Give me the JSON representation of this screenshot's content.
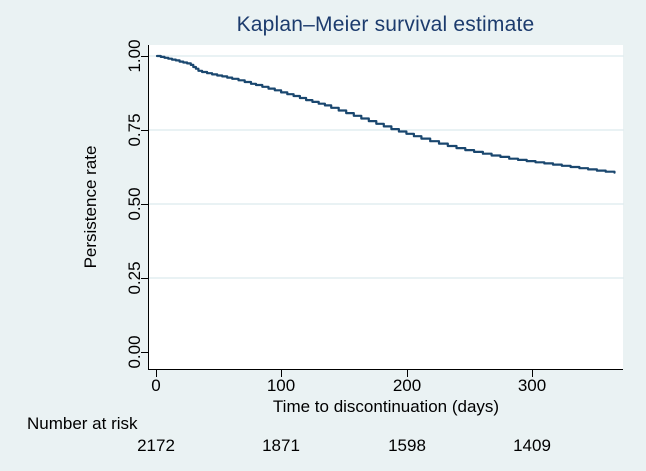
{
  "title": {
    "text": "Kaplan–Meier survival estimate"
  },
  "axes": {
    "y": {
      "title": "Persistence rate",
      "ticks": [
        "1.00",
        "0.75",
        "0.50",
        "0.25",
        "0.00"
      ]
    },
    "x": {
      "title": "Time to discontinuation (days)",
      "ticks": [
        "0",
        "100",
        "200",
        "300"
      ]
    }
  },
  "risk_table": {
    "label": "Number at risk"
  },
  "colors": {
    "background": "#EAF2F3",
    "plot_background": "#FFFFFF",
    "curve": "#1A476F",
    "title_text": "#1C3B6D",
    "grid": "#E2EDF0",
    "axis": "#000000"
  },
  "chart_data": {
    "type": "line",
    "subtype": "kaplan-meier-step",
    "title": "Kaplan–Meier survival estimate",
    "xlabel": "Time to discontinuation (days)",
    "ylabel": "Persistence rate",
    "xlim": [
      0,
      373
    ],
    "ylim": [
      0.0,
      1.0
    ],
    "x_tick_values": [
      0,
      100,
      200,
      300
    ],
    "y_tick_values": [
      1.0,
      0.75,
      0.5,
      0.25,
      0.0
    ],
    "grid_values": [
      1.0,
      0.75,
      0.5,
      0.25
    ],
    "grid": true,
    "legend": "none",
    "series": [
      {
        "name": "KM survival estimate",
        "x": [
          0,
          3,
          6,
          9,
          12,
          15,
          18,
          21,
          24,
          27,
          29,
          31,
          33,
          36,
          40,
          44,
          48,
          52,
          56,
          60,
          65,
          70,
          75,
          79,
          84,
          89,
          94,
          99,
          104,
          109,
          114,
          119,
          124,
          129,
          134,
          139,
          145,
          151,
          157,
          163,
          169,
          175,
          181,
          187,
          193,
          199,
          205,
          211,
          218,
          225,
          232,
          239,
          246,
          253,
          260,
          267,
          274,
          281,
          288,
          295,
          302,
          309,
          316,
          323,
          330,
          337,
          344,
          351,
          358,
          365
        ],
        "y": [
          1.0,
          0.997,
          0.994,
          0.991,
          0.988,
          0.985,
          0.981,
          0.978,
          0.975,
          0.97,
          0.963,
          0.957,
          0.95,
          0.946,
          0.942,
          0.938,
          0.934,
          0.931,
          0.927,
          0.923,
          0.918,
          0.912,
          0.906,
          0.902,
          0.896,
          0.89,
          0.884,
          0.877,
          0.871,
          0.865,
          0.858,
          0.851,
          0.845,
          0.839,
          0.833,
          0.825,
          0.816,
          0.807,
          0.798,
          0.789,
          0.78,
          0.771,
          0.762,
          0.753,
          0.745,
          0.737,
          0.729,
          0.721,
          0.712,
          0.704,
          0.696,
          0.689,
          0.682,
          0.676,
          0.67,
          0.664,
          0.659,
          0.653,
          0.649,
          0.645,
          0.641,
          0.637,
          0.633,
          0.629,
          0.625,
          0.621,
          0.617,
          0.613,
          0.609,
          0.606
        ]
      }
    ],
    "number_at_risk": {
      "label": "Number at risk",
      "times": [
        0,
        100,
        200,
        300
      ],
      "counts": [
        2172,
        1871,
        1598,
        1409
      ]
    }
  }
}
